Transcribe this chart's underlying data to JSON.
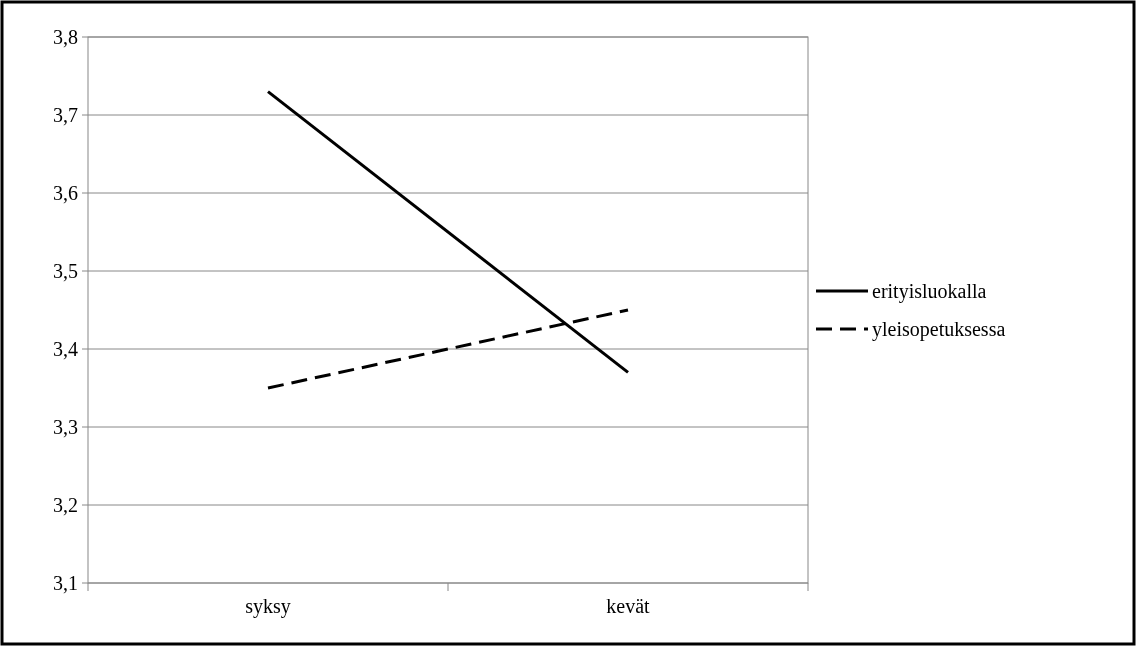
{
  "chart_data": {
    "type": "line",
    "categories": [
      "syksy",
      "kevät"
    ],
    "ylim": [
      3.1,
      3.8
    ],
    "yticks": [
      {
        "value": 3.1,
        "label": "3,1"
      },
      {
        "value": 3.2,
        "label": "3,2"
      },
      {
        "value": 3.3,
        "label": "3,3"
      },
      {
        "value": 3.4,
        "label": "3,4"
      },
      {
        "value": 3.5,
        "label": "3,5"
      },
      {
        "value": 3.6,
        "label": "3,6"
      },
      {
        "value": 3.7,
        "label": "3,7"
      },
      {
        "value": 3.8,
        "label": "3,8"
      }
    ],
    "grid": "y",
    "legend": "right",
    "series": [
      {
        "name": "erityisluokalla",
        "color": "#000000",
        "line_style": "solid",
        "values": [
          3.73,
          3.37
        ]
      },
      {
        "name": "yleisopetuksessa",
        "color": "#000000",
        "line_style": "dashed",
        "values": [
          3.35,
          3.45
        ]
      }
    ]
  }
}
